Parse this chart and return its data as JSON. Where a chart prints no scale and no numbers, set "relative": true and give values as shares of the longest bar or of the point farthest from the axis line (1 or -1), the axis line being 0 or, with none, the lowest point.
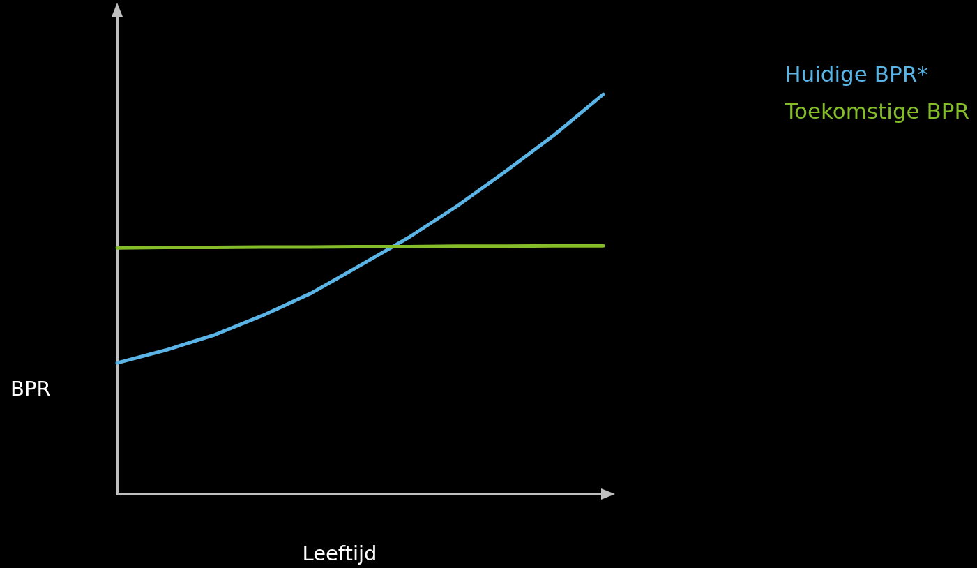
{
  "chart_data": {
    "type": "line",
    "relative": true,
    "xlabel": "Leeftijd",
    "ylabel": "BPR",
    "categories": [
      null,
      null,
      null,
      null,
      null,
      null,
      null,
      null,
      null,
      null,
      null
    ],
    "series": [
      {
        "name": "Huidige BPR*",
        "color": "#5ab4e5",
        "values": [
          0.328,
          0.36,
          0.398,
          0.447,
          0.503,
          0.572,
          0.642,
          0.721,
          0.808,
          0.899,
          1
        ]
      },
      {
        "name": "Toekomstige BPR",
        "color": "#84bc2a",
        "values": [
          0.616,
          0.617,
          0.617,
          0.618,
          0.618,
          0.619,
          0.619,
          0.62,
          0.62,
          0.621,
          0.621
        ]
      }
    ],
    "legend": "top right",
    "marker": "none",
    "line_style": "solid",
    "grid": false
  }
}
